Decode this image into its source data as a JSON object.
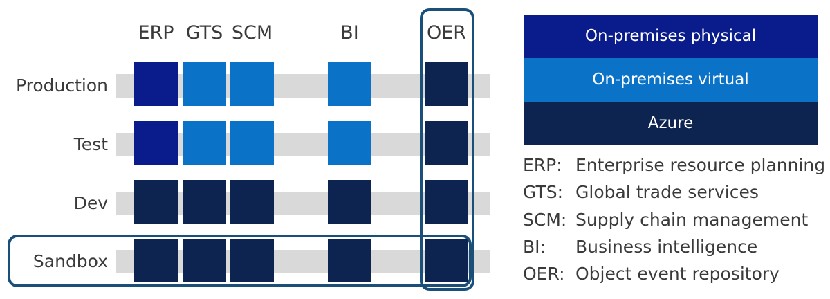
{
  "colors": {
    "on_premises_physical": "#0a1b8c",
    "on_premises_virtual": "#0a73c8",
    "azure": "#0e2450",
    "band": "#d9d9d9",
    "outline": "#1a4f7a"
  },
  "matrix": {
    "columns": [
      "ERP",
      "GTS",
      "SCM",
      "BI",
      "OER"
    ],
    "rows": [
      "Production",
      "Test",
      "Dev",
      "Sandbox"
    ],
    "cells": [
      [
        "on_premises_physical",
        "on_premises_virtual",
        "on_premises_virtual",
        "on_premises_virtual",
        "azure"
      ],
      [
        "on_premises_physical",
        "on_premises_virtual",
        "on_premises_virtual",
        "on_premises_virtual",
        "azure"
      ],
      [
        "azure",
        "azure",
        "azure",
        "azure",
        "azure"
      ],
      [
        "azure",
        "azure",
        "azure",
        "azure",
        "azure"
      ]
    ]
  },
  "legend": {
    "items": [
      {
        "key": "on_premises_physical",
        "label": "On-premises physical"
      },
      {
        "key": "on_premises_virtual",
        "label": "On-premises virtual"
      },
      {
        "key": "azure",
        "label": "Azure"
      }
    ]
  },
  "abbreviations": [
    {
      "abbr": "ERP:",
      "desc": "Enterprise resource planning"
    },
    {
      "abbr": "GTS:",
      "desc": "Global trade services"
    },
    {
      "abbr": "SCM:",
      "desc": "Supply chain management"
    },
    {
      "abbr": "BI:",
      "desc": "Business intelligence"
    },
    {
      "abbr": "OER:",
      "desc": "Object event repository"
    }
  ]
}
